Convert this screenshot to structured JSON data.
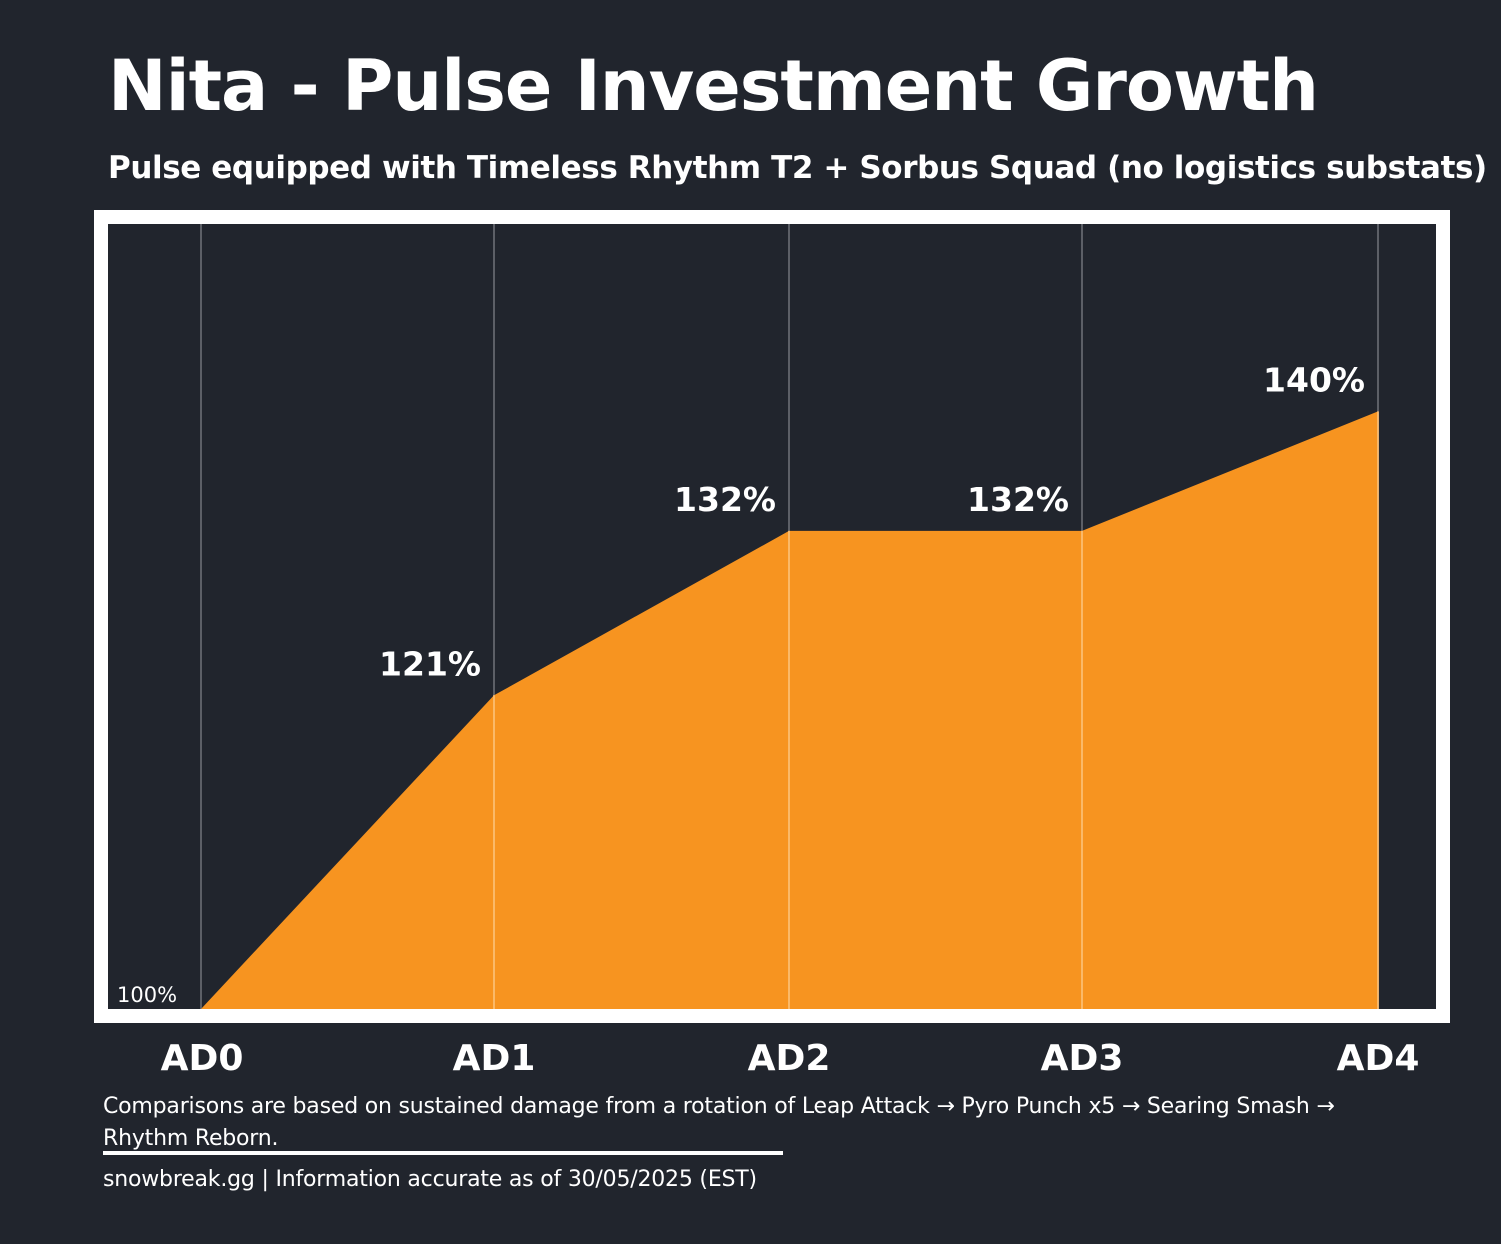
{
  "title": "Nita - Pulse Investment Growth",
  "subtitle": "Pulse equipped with Timeless Rhythm T2 + Sorbus Squad (no logistics substats)",
  "colors": {
    "background": "#21252d",
    "area_fill": "#f79420",
    "frame": "#ffffff",
    "gridline": "#5c5f66",
    "gridline_over_fill": "#fbbf76",
    "text": "#ffffff"
  },
  "chart_data": {
    "type": "area",
    "title": "Nita - Pulse Investment Growth",
    "subtitle": "Pulse equipped with Timeless Rhythm T2 + Sorbus Squad (no logistics substats)",
    "categories": [
      "AD0",
      "AD1",
      "AD2",
      "AD3",
      "AD4"
    ],
    "values": [
      100,
      121,
      132,
      132,
      140
    ],
    "data_labels": [
      "100%",
      "121%",
      "132%",
      "132%",
      "140%"
    ],
    "unit": "%",
    "ylim": [
      100,
      150
    ],
    "grid": "vertical",
    "legend": "none"
  },
  "footer": {
    "note": "Comparisons are based on sustained damage from a rotation of Leap Attack → Pyro Punch x5 → Searing Smash → Rhythm Reborn.",
    "credit": "snowbreak.gg | Information accurate as of 30/05/2025 (EST)"
  }
}
